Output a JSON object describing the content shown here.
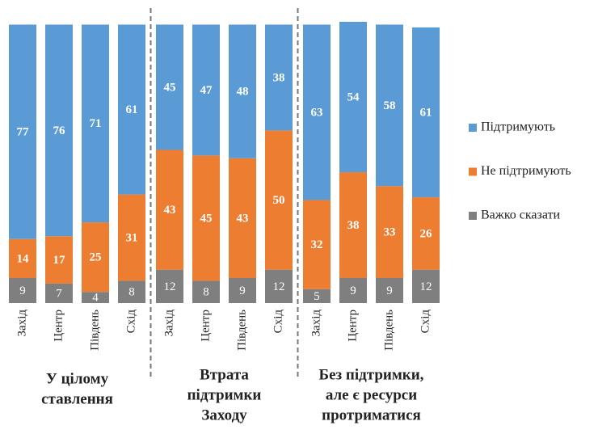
{
  "chart_data": {
    "type": "stacked_bar",
    "categories": [
      "Захід",
      "Центр",
      "Південь",
      "Схід",
      "Захід",
      "Центр",
      "Південь",
      "Схід",
      "Захід",
      "Центр",
      "Південь",
      "Схід"
    ],
    "groups": [
      {
        "lines": [
          "У цілому",
          "ставлення"
        ]
      },
      {
        "lines": [
          "Втрата",
          "підтримки",
          "Заходу"
        ]
      },
      {
        "lines": [
          "Без підтримки,",
          "але є ресурси",
          "протриматися"
        ]
      }
    ],
    "series": [
      {
        "name": "Підтримують",
        "color": "#5b9bd5",
        "values": [
          77,
          76,
          71,
          61,
          45,
          47,
          48,
          38,
          63,
          54,
          58,
          61
        ]
      },
      {
        "name": "Не підтримують",
        "color": "#ed7d31",
        "values": [
          14,
          17,
          25,
          31,
          43,
          45,
          43,
          50,
          32,
          38,
          33,
          26
        ]
      },
      {
        "name": "Важко сказати",
        "color": "#7f7f7f",
        "values": [
          9,
          7,
          4,
          8,
          12,
          8,
          9,
          12,
          5,
          9,
          9,
          12
        ]
      }
    ],
    "legend": "right"
  }
}
